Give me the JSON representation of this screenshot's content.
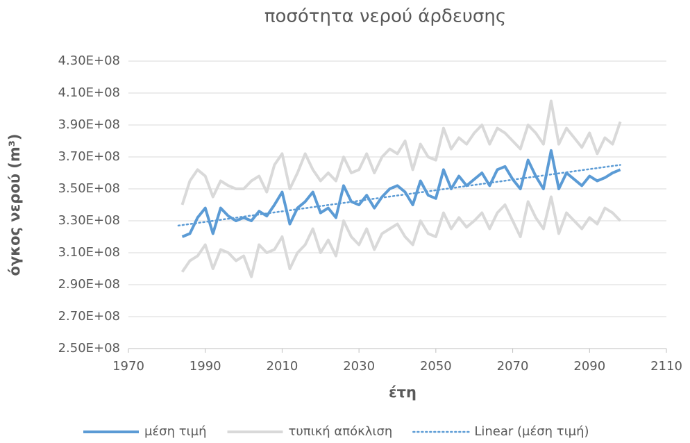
{
  "chart_data": {
    "type": "line",
    "title": "ποσότητα νερού άρδευσης",
    "xlabel": "έτη",
    "ylabel": "όγκος νερού (m³)",
    "xlim": [
      1970,
      2110
    ],
    "xticks": [
      1970,
      1990,
      2010,
      2030,
      2050,
      2070,
      2090,
      2110
    ],
    "ylim": [
      250000000.0,
      430000000.0
    ],
    "yticks": [
      {
        "value": 250000000.0,
        "label": "2.50E+08"
      },
      {
        "value": 270000000.0,
        "label": "2.70E+08"
      },
      {
        "value": 290000000.0,
        "label": "2.90E+08"
      },
      {
        "value": 310000000.0,
        "label": "3.10E+08"
      },
      {
        "value": 330000000.0,
        "label": "3.30E+08"
      },
      {
        "value": 350000000.0,
        "label": "3.50E+08"
      },
      {
        "value": 370000000.0,
        "label": "3.70E+08"
      },
      {
        "value": 390000000.0,
        "label": "3.90E+08"
      },
      {
        "value": 410000000.0,
        "label": "4.10E+08"
      },
      {
        "value": 430000000.0,
        "label": "4.30E+08"
      }
    ],
    "grid": true,
    "legend": "bottom",
    "x": [
      1984,
      1986,
      1988,
      1990,
      1992,
      1994,
      1996,
      1998,
      2000,
      2002,
      2004,
      2006,
      2008,
      2010,
      2012,
      2014,
      2016,
      2018,
      2020,
      2022,
      2024,
      2026,
      2028,
      2030,
      2032,
      2034,
      2036,
      2038,
      2040,
      2042,
      2044,
      2046,
      2048,
      2050,
      2052,
      2054,
      2056,
      2058,
      2060,
      2062,
      2064,
      2066,
      2068,
      2070,
      2072,
      2074,
      2076,
      2078,
      2080,
      2082,
      2084,
      2086,
      2088,
      2090,
      2092,
      2094,
      2096,
      2098
    ],
    "series": [
      {
        "name": "τυπική απόκλιση",
        "color": "#d9d9d9",
        "width": 4,
        "values": [
          340000000.0,
          355000000.0,
          362000000.0,
          358000000.0,
          345000000.0,
          355000000.0,
          352000000.0,
          350000000.0,
          350000000.0,
          355000000.0,
          358000000.0,
          348000000.0,
          365000000.0,
          372000000.0,
          350000000.0,
          360000000.0,
          372000000.0,
          362000000.0,
          355000000.0,
          360000000.0,
          355000000.0,
          370000000.0,
          360000000.0,
          362000000.0,
          372000000.0,
          360000000.0,
          370000000.0,
          375000000.0,
          372000000.0,
          380000000.0,
          362000000.0,
          378000000.0,
          370000000.0,
          368000000.0,
          388000000.0,
          375000000.0,
          382000000.0,
          378000000.0,
          385000000.0,
          390000000.0,
          378000000.0,
          388000000.0,
          385000000.0,
          380000000.0,
          375000000.0,
          390000000.0,
          385000000.0,
          378000000.0,
          405000000.0,
          378000000.0,
          388000000.0,
          382000000.0,
          376000000.0,
          385000000.0,
          372000000.0,
          382000000.0,
          378000000.0,
          392000000.0
        ]
      },
      {
        "color": "#d9d9d9",
        "width": 4,
        "values": [
          298000000.0,
          305000000.0,
          308000000.0,
          315000000.0,
          300000000.0,
          312000000.0,
          310000000.0,
          305000000.0,
          308000000.0,
          295000000.0,
          315000000.0,
          310000000.0,
          312000000.0,
          320000000.0,
          300000000.0,
          310000000.0,
          315000000.0,
          325000000.0,
          310000000.0,
          318000000.0,
          308000000.0,
          330000000.0,
          320000000.0,
          315000000.0,
          325000000.0,
          312000000.0,
          322000000.0,
          325000000.0,
          328000000.0,
          320000000.0,
          315000000.0,
          330000000.0,
          322000000.0,
          320000000.0,
          335000000.0,
          325000000.0,
          332000000.0,
          326000000.0,
          330000000.0,
          335000000.0,
          325000000.0,
          335000000.0,
          340000000.0,
          330000000.0,
          320000000.0,
          342000000.0,
          332000000.0,
          325000000.0,
          345000000.0,
          322000000.0,
          335000000.0,
          330000000.0,
          325000000.0,
          332000000.0,
          328000000.0,
          338000000.0,
          335000000.0,
          330000000.0
        ]
      },
      {
        "name": "μέση τιμή",
        "color": "#5b9bd5",
        "width": 4,
        "values": [
          320000000.0,
          322000000.0,
          332000000.0,
          338000000.0,
          322000000.0,
          338000000.0,
          333000000.0,
          330000000.0,
          332000000.0,
          330000000.0,
          336000000.0,
          333000000.0,
          340000000.0,
          348000000.0,
          328000000.0,
          338000000.0,
          342000000.0,
          348000000.0,
          335000000.0,
          338000000.0,
          332000000.0,
          352000000.0,
          342000000.0,
          340000000.0,
          346000000.0,
          338000000.0,
          345000000.0,
          350000000.0,
          352000000.0,
          348000000.0,
          340000000.0,
          355000000.0,
          346000000.0,
          344000000.0,
          362000000.0,
          350000000.0,
          358000000.0,
          352000000.0,
          356000000.0,
          360000000.0,
          352000000.0,
          362000000.0,
          364000000.0,
          356000000.0,
          350000000.0,
          368000000.0,
          358000000.0,
          350000000.0,
          374000000.0,
          350000000.0,
          360000000.0,
          356000000.0,
          352000000.0,
          358000000.0,
          355000000.0,
          357000000.0,
          360000000.0,
          362000000.0
        ]
      },
      {
        "name": "Linear (μέση τιμή)",
        "color": "#5b9bd5",
        "width": 2.5,
        "dash": "2 4",
        "x": [
          1983,
          2098
        ],
        "values": [
          327000000.0,
          365000000.0
        ]
      }
    ]
  }
}
